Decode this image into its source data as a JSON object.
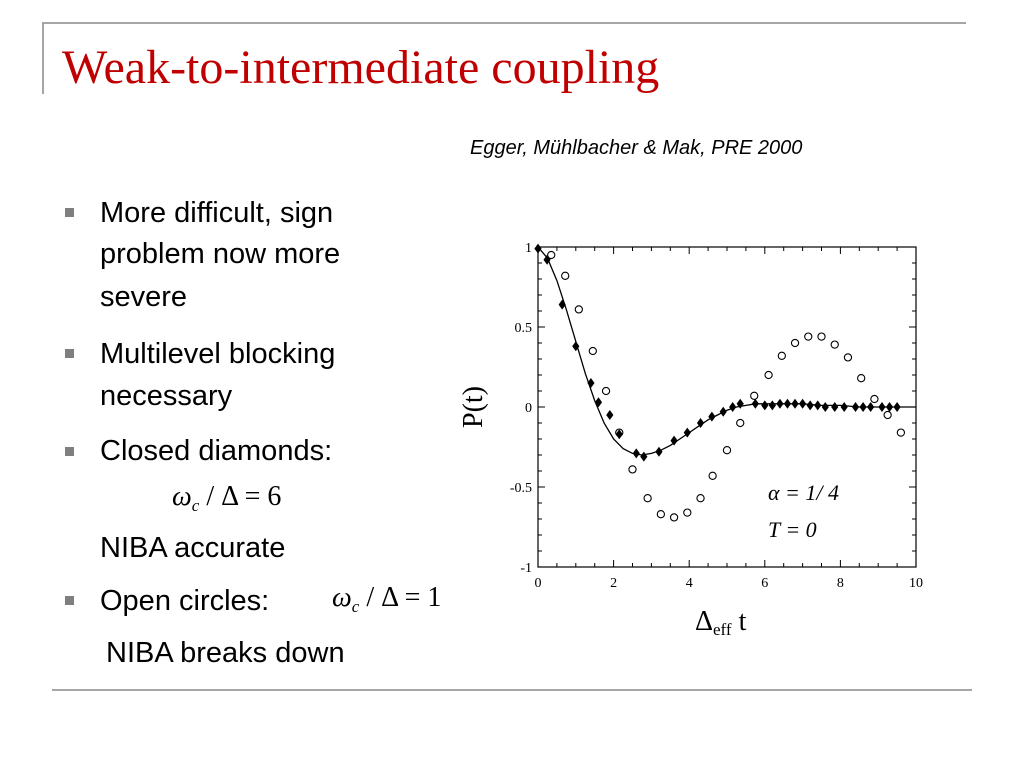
{
  "slide": {
    "title": "Weak-to-intermediate coupling",
    "citation": "Egger, Mühlbacher & Mak, PRE 2000"
  },
  "bullets": {
    "b1_line1": "More difficult, sign",
    "b1_line2": "problem now more",
    "b1_line3": "severe",
    "b2_line1": "Multilevel blocking",
    "b2_line2": "necessary",
    "b3_line1": "Closed diamonds:",
    "b3_line3": "NIBA accurate",
    "b4_line1": "Open circles:",
    "b4_line2": "NIBA breaks down"
  },
  "formulas": {
    "closed": {
      "omega": "ω",
      "sub": "c",
      "rest": " / Δ = 6"
    },
    "open": {
      "omega": "ω",
      "sub": "c",
      "rest": " / Δ = 1"
    }
  },
  "chart_data": {
    "type": "scatter",
    "xlabel_main": "Δ",
    "xlabel_sub": "eff",
    "xlabel_tail": " t",
    "ylabel": "P(t)",
    "xlim": [
      0,
      10
    ],
    "ylim": [
      -1,
      1
    ],
    "xticks": [
      "0",
      "2",
      "4",
      "6",
      "8",
      "10"
    ],
    "yticks": [
      "1",
      "0.5",
      "0",
      "-0.5",
      "-1"
    ],
    "annotation_alpha": "α = 1/ 4",
    "annotation_T": "T = 0",
    "series": [
      {
        "marker": "filled-diamond",
        "x": [
          0,
          0.24,
          0.64,
          1.0,
          1.4,
          1.6,
          1.9,
          2.15,
          2.6,
          2.8,
          3.2,
          3.6,
          3.95,
          4.3,
          4.6,
          4.9,
          5.15,
          5.35,
          5.75,
          6.0,
          6.2,
          6.4,
          6.6,
          6.8,
          7.0,
          7.2,
          7.4,
          7.6,
          7.85,
          8.1,
          8.4,
          8.6,
          8.8,
          9.1,
          9.3,
          9.5
        ],
        "y": [
          0.99,
          0.92,
          0.64,
          0.38,
          0.15,
          0.03,
          -0.05,
          -0.17,
          -0.29,
          -0.31,
          -0.28,
          -0.21,
          -0.16,
          -0.1,
          -0.06,
          -0.03,
          0.0,
          0.02,
          0.02,
          0.01,
          0.01,
          0.02,
          0.02,
          0.02,
          0.02,
          0.01,
          0.01,
          0.0,
          0.0,
          0.0,
          0.0,
          0.0,
          0.0,
          0.0,
          0.0,
          0.0
        ]
      },
      {
        "marker": "open-circle",
        "x": [
          0.35,
          0.72,
          1.08,
          1.45,
          1.8,
          2.15,
          2.5,
          2.9,
          3.25,
          3.6,
          3.95,
          4.3,
          4.62,
          5.0,
          5.35,
          5.72,
          6.1,
          6.45,
          6.8,
          7.15,
          7.5,
          7.85,
          8.2,
          8.55,
          8.9,
          9.25,
          9.6
        ],
        "y": [
          0.95,
          0.82,
          0.61,
          0.35,
          0.1,
          -0.16,
          -0.39,
          -0.57,
          -0.67,
          -0.69,
          -0.66,
          -0.57,
          -0.43,
          -0.27,
          -0.1,
          0.07,
          0.2,
          0.32,
          0.4,
          0.44,
          0.44,
          0.39,
          0.31,
          0.18,
          0.05,
          -0.05,
          -0.16
        ]
      },
      {
        "marker": "line",
        "x": [
          0,
          0.25,
          0.5,
          0.75,
          1.0,
          1.25,
          1.5,
          1.75,
          2.0,
          2.25,
          2.5,
          2.75,
          3.0,
          3.25,
          3.5,
          3.75,
          4.0,
          4.25,
          4.5,
          4.75,
          5.0,
          5.25,
          5.5,
          5.75,
          6.0,
          6.5,
          7.0,
          7.5,
          8.0,
          8.5,
          9.0,
          9.5,
          10.0
        ],
        "y": [
          1.0,
          0.93,
          0.79,
          0.61,
          0.41,
          0.21,
          0.04,
          -0.1,
          -0.2,
          -0.26,
          -0.29,
          -0.3,
          -0.29,
          -0.27,
          -0.24,
          -0.2,
          -0.16,
          -0.12,
          -0.08,
          -0.05,
          -0.02,
          0.0,
          0.01,
          0.02,
          0.02,
          0.02,
          0.02,
          0.01,
          0.01,
          0.0,
          0.0,
          0.0,
          0.0
        ]
      }
    ]
  }
}
